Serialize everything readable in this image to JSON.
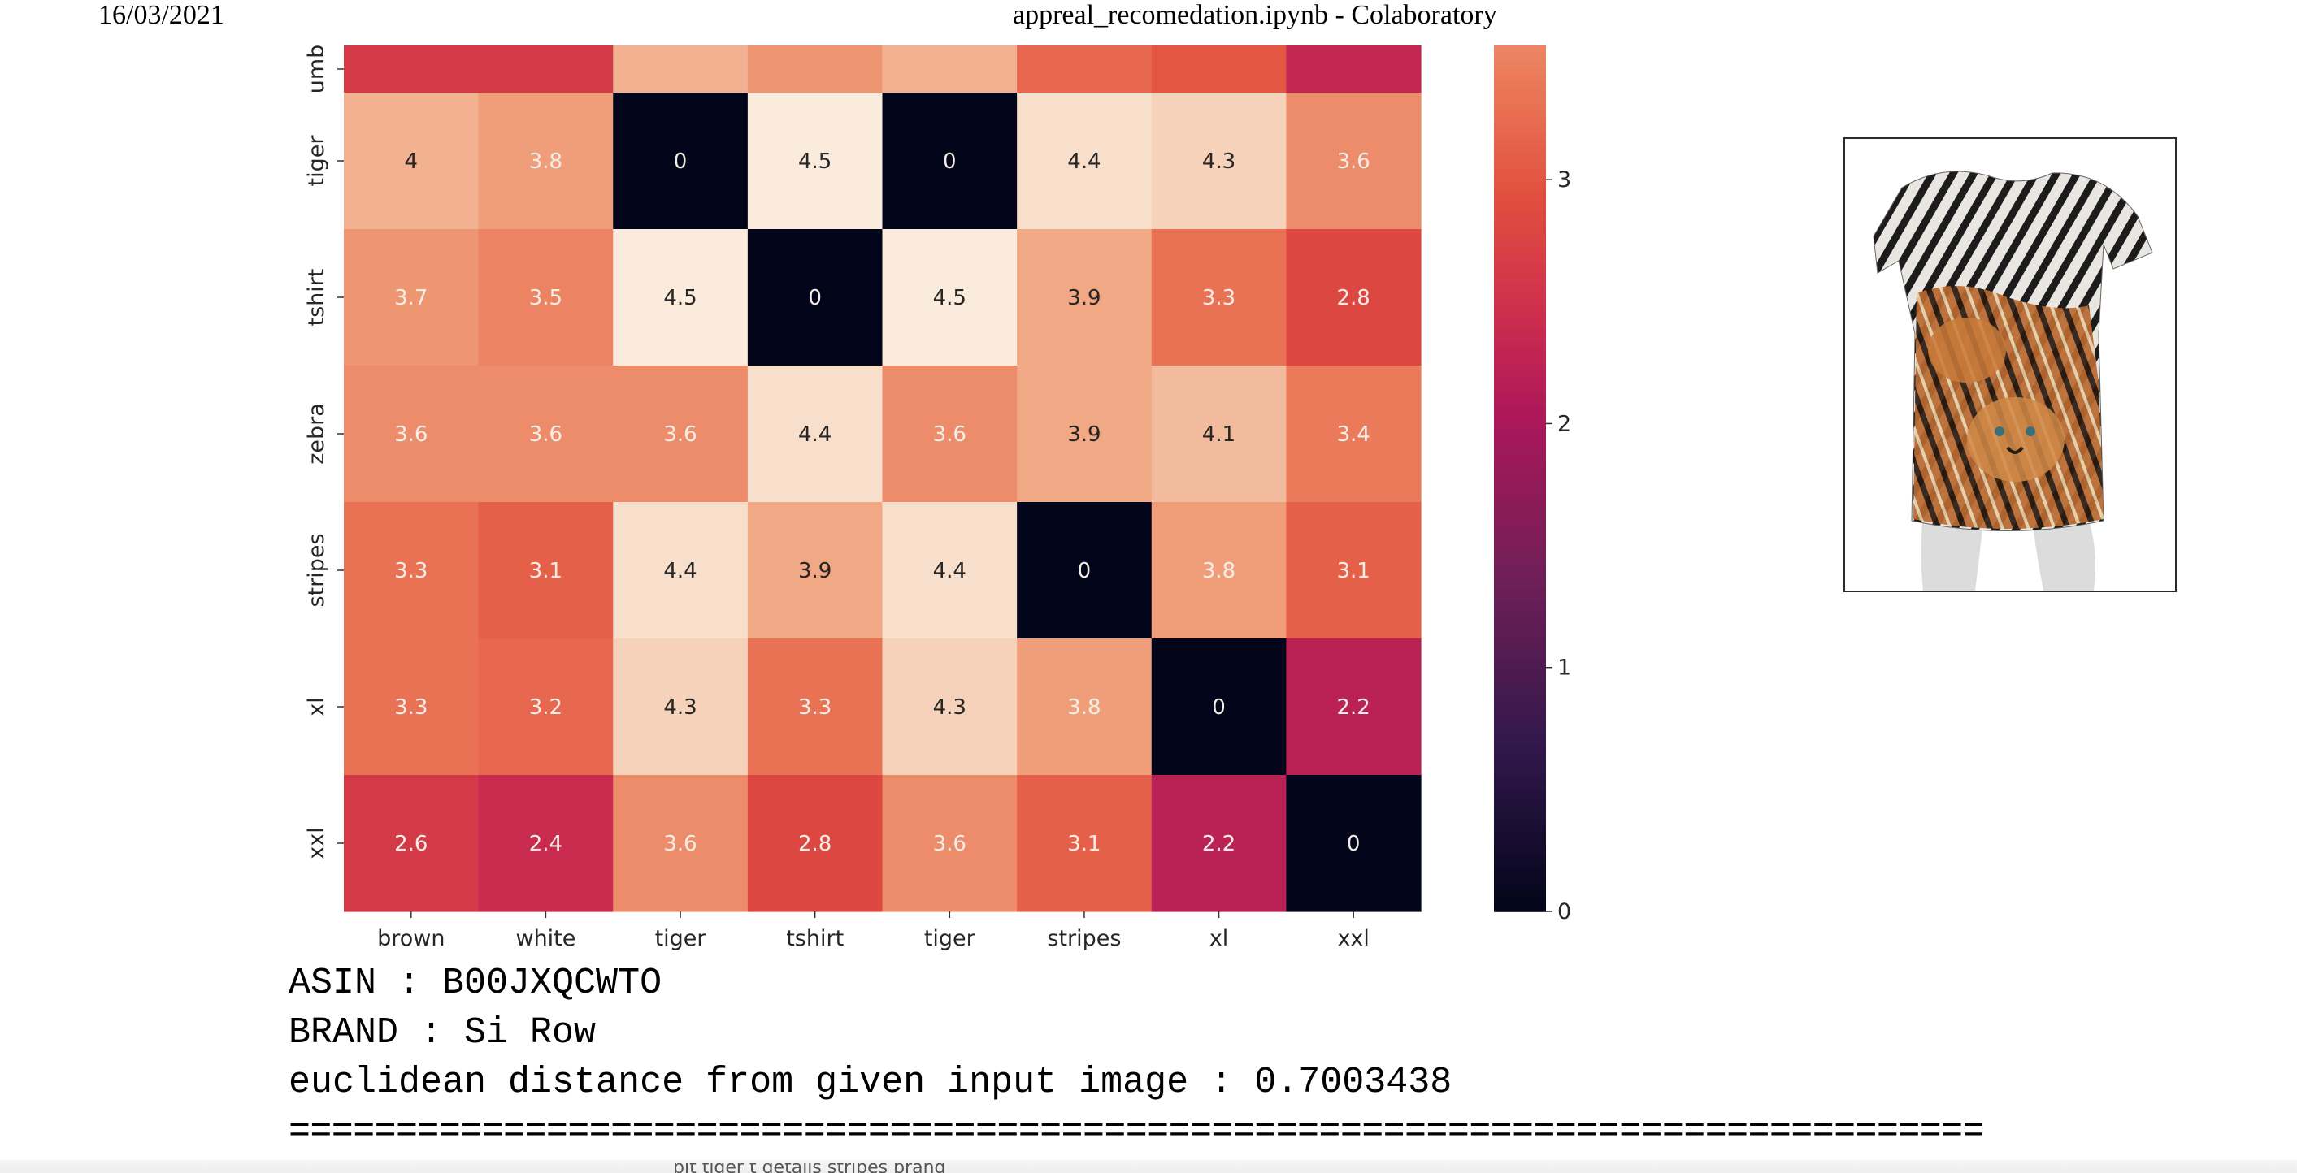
{
  "header": {
    "date": "16/03/2021",
    "title": "appreal_recomedation.ipynb - Colaboratory"
  },
  "chart_data": {
    "type": "heatmap",
    "title": "",
    "xlabel": "",
    "ylabel": "",
    "x_categories": [
      "brown",
      "white",
      "tiger",
      "tshirt",
      "tiger",
      "stripes",
      "xl",
      "xxl"
    ],
    "y_categories": [
      "umb",
      "tiger",
      "tshirt",
      "zebra",
      "stripes",
      "xl",
      "xxl"
    ],
    "values": [
      [
        2.6,
        2.6,
        4.0,
        3.7,
        4.0,
        3.2,
        3.0,
        2.3
      ],
      [
        4,
        3.8,
        0,
        4.5,
        0,
        4.4,
        4.3,
        3.6
      ],
      [
        3.7,
        3.5,
        4.5,
        0,
        4.5,
        3.9,
        3.3,
        2.8
      ],
      [
        3.6,
        3.6,
        3.6,
        4.4,
        3.6,
        3.9,
        4.1,
        3.4
      ],
      [
        3.3,
        3.1,
        4.4,
        3.9,
        4.4,
        0,
        3.8,
        3.1
      ],
      [
        3.3,
        3.2,
        4.3,
        3.3,
        4.3,
        3.8,
        0,
        2.2
      ],
      [
        2.6,
        2.4,
        3.6,
        2.8,
        3.6,
        3.1,
        2.2,
        0
      ]
    ],
    "annotated_rows": [
      false,
      true,
      true,
      true,
      true,
      true,
      true
    ],
    "colorbar": {
      "vmin": 0,
      "vmax": 3.55,
      "ticks": [
        0,
        1,
        2,
        3
      ],
      "tick_labels": [
        "0",
        "1",
        "2",
        "3"
      ],
      "colormap": "rocket"
    },
    "grid": false
  },
  "product_image": {
    "description_icon": "tiger-zebra-print-top"
  },
  "info": {
    "asin": "ASIN : B00JXQCWTO",
    "brand": "BRAND : Si Row",
    "distance": "euclidean distance from given input image : 0.7003438",
    "separator": "==============================================================================="
  },
  "cutoff_text": "bit  tiger  t  details  stripes  brand"
}
